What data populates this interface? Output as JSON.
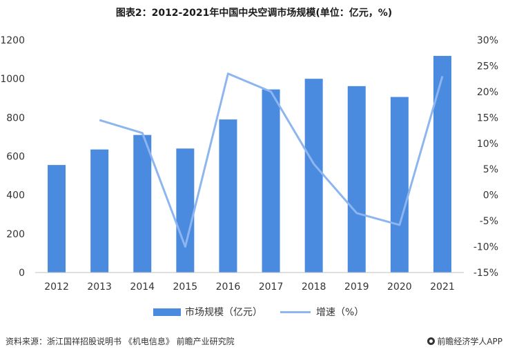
{
  "title": "图表2：2012-2021年中国中央空调市场规模(单位：亿元，%)",
  "legend": {
    "bar_label": "市场规模（亿元）",
    "line_label": "增速（%）"
  },
  "footer": {
    "source": "资料来源：浙江国祥招股说明书 《机电信息》 前瞻产业研究院",
    "brand": "前瞻经济学人APP"
  },
  "colors": {
    "bar": "#4a8be0",
    "line": "#8db5ef",
    "axis": "#bfbfbf"
  },
  "chart_data": {
    "type": "bar",
    "categories": [
      "2012",
      "2013",
      "2014",
      "2015",
      "2016",
      "2017",
      "2018",
      "2019",
      "2020",
      "2021"
    ],
    "series": [
      {
        "name": "市场规模（亿元）",
        "type": "bar",
        "axis": "left",
        "values": [
          555,
          635,
          710,
          640,
          790,
          945,
          1000,
          962,
          906,
          1118
        ]
      },
      {
        "name": "增速（%）",
        "type": "line",
        "axis": "right",
        "values": [
          null,
          14.5,
          12.0,
          -10.0,
          23.5,
          20.0,
          6.0,
          -3.5,
          -5.8,
          23.0
        ]
      }
    ],
    "ylim_left": [
      0,
      1200
    ],
    "yticks_left": [
      "0",
      "200",
      "400",
      "600",
      "800",
      "1000",
      "1200"
    ],
    "ylim_right": [
      -15,
      30
    ],
    "yticks_right": [
      "-15%",
      "-10%",
      "-5%",
      "0%",
      "5%",
      "10%",
      "15%",
      "20%",
      "25%",
      "30%"
    ],
    "grid": false,
    "legend_position": "bottom"
  }
}
